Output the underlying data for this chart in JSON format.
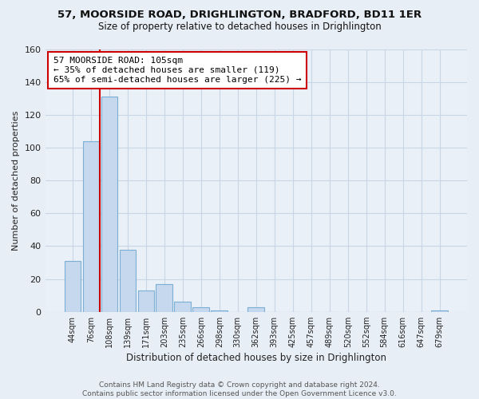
{
  "title1": "57, MOORSIDE ROAD, DRIGHLINGTON, BRADFORD, BD11 1ER",
  "title2": "Size of property relative to detached houses in Drighlington",
  "xlabel": "Distribution of detached houses by size in Drighlington",
  "ylabel": "Number of detached properties",
  "bar_labels": [
    "44sqm",
    "76sqm",
    "108sqm",
    "139sqm",
    "171sqm",
    "203sqm",
    "235sqm",
    "266sqm",
    "298sqm",
    "330sqm",
    "362sqm",
    "393sqm",
    "425sqm",
    "457sqm",
    "489sqm",
    "520sqm",
    "552sqm",
    "584sqm",
    "616sqm",
    "647sqm",
    "679sqm"
  ],
  "bar_values": [
    31,
    104,
    131,
    38,
    13,
    17,
    6,
    3,
    1,
    0,
    3,
    0,
    0,
    0,
    0,
    0,
    0,
    0,
    0,
    0,
    1
  ],
  "bar_color": "#c5d8ee",
  "bar_edge_color": "#7bafd4",
  "highlight_line_color": "#cc0000",
  "highlight_bar_index": 2,
  "annotation_line1": "57 MOORSIDE ROAD: 105sqm",
  "annotation_line2": "← 35% of detached houses are smaller (119)",
  "annotation_line3": "65% of semi-detached houses are larger (225) →",
  "annotation_box_color": "#ffffff",
  "annotation_box_edge_color": "#cc0000",
  "ylim": [
    0,
    160
  ],
  "yticks": [
    0,
    20,
    40,
    60,
    80,
    100,
    120,
    140,
    160
  ],
  "footer_text": "Contains HM Land Registry data © Crown copyright and database right 2024.\nContains public sector information licensed under the Open Government Licence v3.0.",
  "background_color": "#e8eef5",
  "plot_background_color": "#eaf0f7",
  "grid_color": "#c8d5e5"
}
